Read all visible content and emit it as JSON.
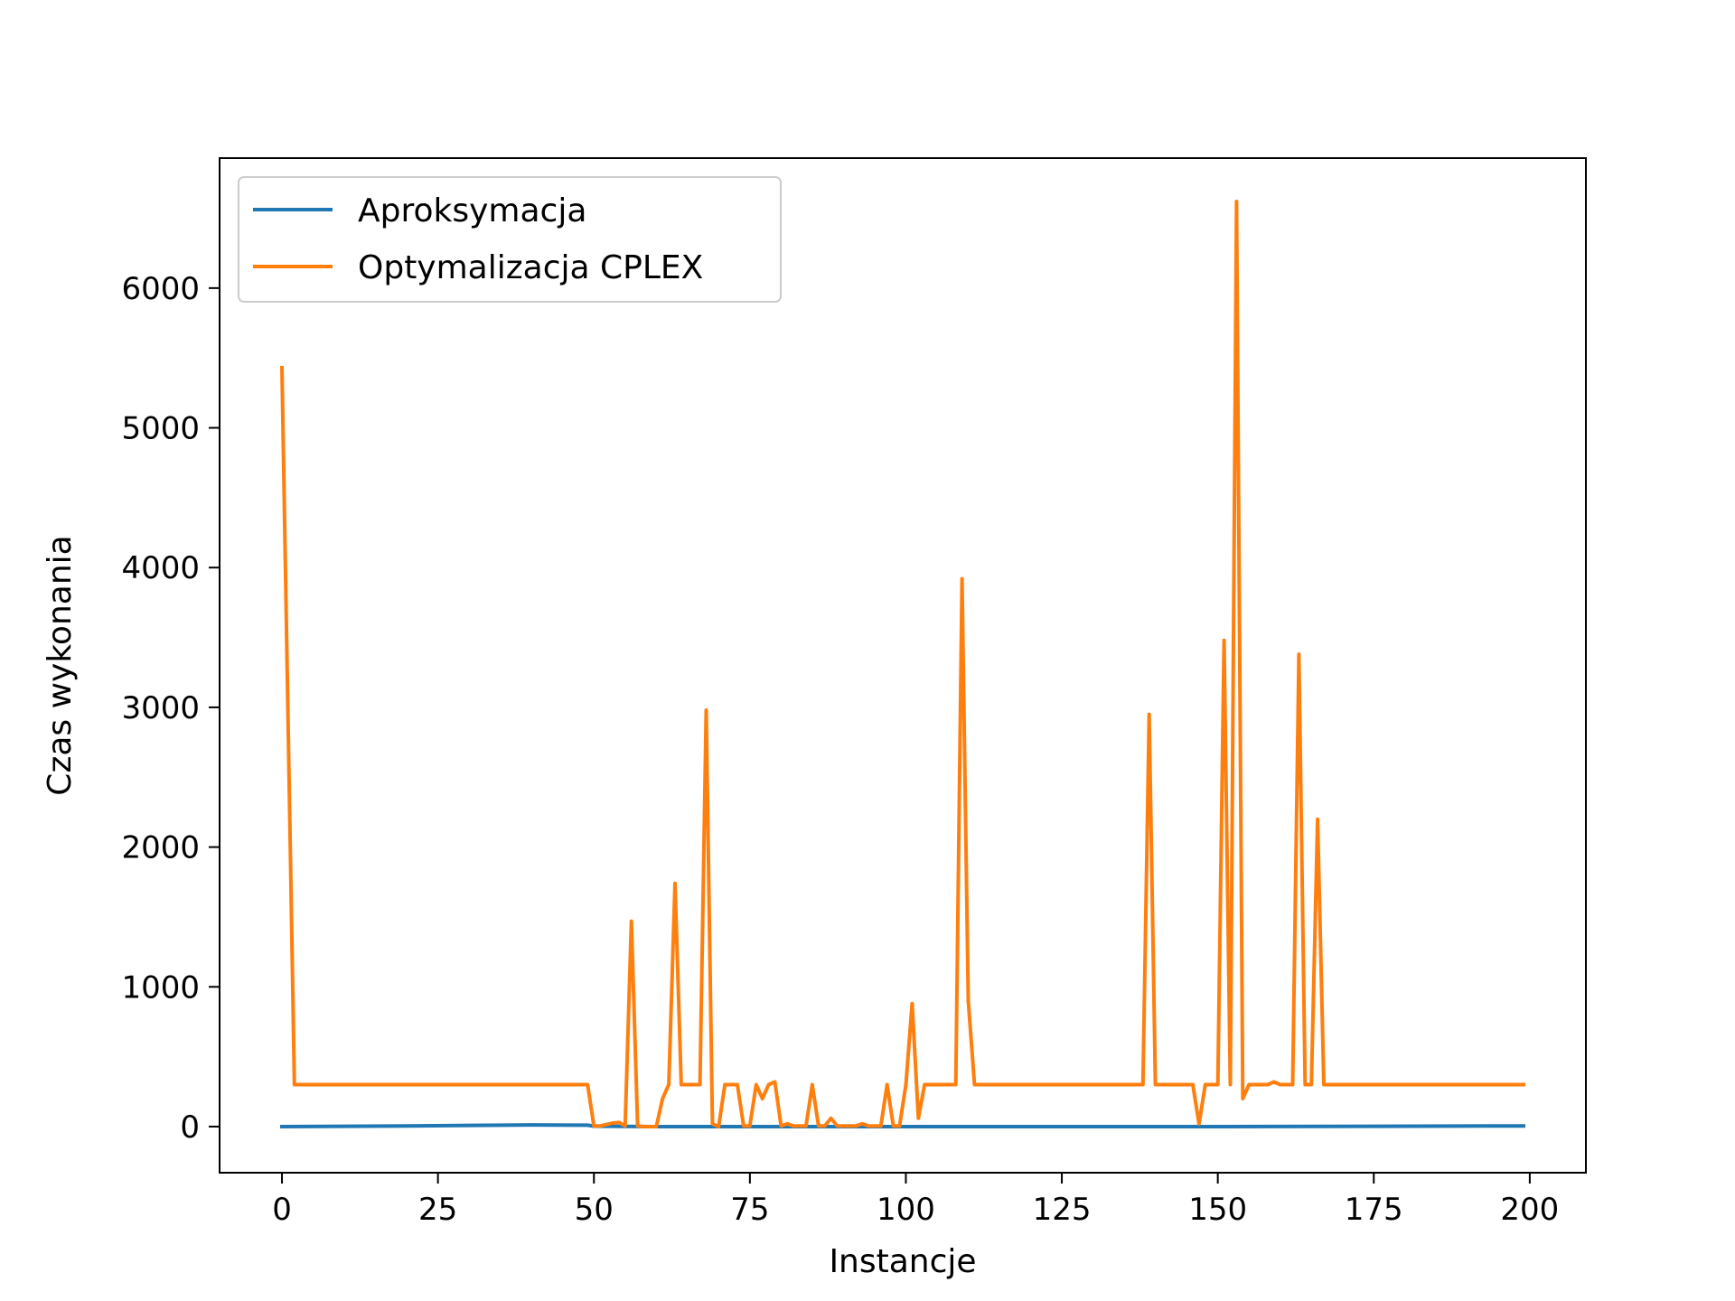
{
  "chart_data": {
    "type": "line",
    "xlabel": "Instancje",
    "ylabel": "Czas wykonania",
    "xlim": [
      -10,
      209
    ],
    "ylim": [
      -330,
      6930
    ],
    "x_ticks": [
      0,
      25,
      50,
      75,
      100,
      125,
      150,
      175,
      200
    ],
    "x_tick_labels": [
      "0",
      "25",
      "50",
      "75",
      "100",
      "125",
      "150",
      "175",
      "200"
    ],
    "y_ticks": [
      0,
      1000,
      2000,
      3000,
      4000,
      5000,
      6000
    ],
    "y_tick_labels": [
      "0",
      "1000",
      "2000",
      "3000",
      "4000",
      "5000",
      "6000"
    ],
    "grid": false,
    "legend_position": "upper-left",
    "colors": {
      "Aproksymacja": "#1f77b4",
      "Optymalizacja CPLEX": "#ff7f0e"
    },
    "series": [
      {
        "name": "Aproksymacja",
        "points": [
          [
            0,
            0
          ],
          [
            20,
            5
          ],
          [
            40,
            12
          ],
          [
            49,
            10
          ],
          [
            50,
            3
          ],
          [
            60,
            0
          ],
          [
            100,
            0
          ],
          [
            150,
            0
          ],
          [
            199,
            5
          ]
        ]
      },
      {
        "name": "Optymalizacja CPLEX",
        "points": [
          [
            0,
            5430
          ],
          [
            2,
            300
          ],
          [
            49,
            300
          ],
          [
            50,
            5
          ],
          [
            51,
            5
          ],
          [
            53,
            25
          ],
          [
            54,
            30
          ],
          [
            55,
            5
          ],
          [
            56,
            1470
          ],
          [
            57,
            5
          ],
          [
            58,
            0
          ],
          [
            60,
            0
          ],
          [
            61,
            200
          ],
          [
            62,
            300
          ],
          [
            63,
            1740
          ],
          [
            64,
            300
          ],
          [
            67,
            300
          ],
          [
            68,
            2980
          ],
          [
            69,
            20
          ],
          [
            70,
            0
          ],
          [
            71,
            300
          ],
          [
            73,
            300
          ],
          [
            74,
            5
          ],
          [
            75,
            5
          ],
          [
            76,
            300
          ],
          [
            77,
            200
          ],
          [
            78,
            300
          ],
          [
            79,
            320
          ],
          [
            80,
            5
          ],
          [
            81,
            20
          ],
          [
            82,
            5
          ],
          [
            84,
            5
          ],
          [
            85,
            300
          ],
          [
            86,
            5
          ],
          [
            87,
            5
          ],
          [
            88,
            60
          ],
          [
            89,
            5
          ],
          [
            92,
            5
          ],
          [
            93,
            20
          ],
          [
            94,
            5
          ],
          [
            96,
            5
          ],
          [
            97,
            300
          ],
          [
            98,
            5
          ],
          [
            99,
            5
          ],
          [
            100,
            300
          ],
          [
            101,
            880
          ],
          [
            102,
            60
          ],
          [
            103,
            300
          ],
          [
            108,
            300
          ],
          [
            109,
            3920
          ],
          [
            110,
            900
          ],
          [
            111,
            300
          ],
          [
            138,
            300
          ],
          [
            139,
            2950
          ],
          [
            140,
            300
          ],
          [
            146,
            300
          ],
          [
            147,
            20
          ],
          [
            148,
            300
          ],
          [
            150,
            300
          ],
          [
            151,
            3480
          ],
          [
            152,
            300
          ],
          [
            153,
            6620
          ],
          [
            154,
            200
          ],
          [
            155,
            300
          ],
          [
            158,
            300
          ],
          [
            159,
            320
          ],
          [
            160,
            300
          ],
          [
            162,
            300
          ],
          [
            163,
            3380
          ],
          [
            164,
            300
          ],
          [
            165,
            300
          ],
          [
            166,
            2200
          ],
          [
            167,
            300
          ],
          [
            199,
            300
          ]
        ]
      }
    ]
  }
}
